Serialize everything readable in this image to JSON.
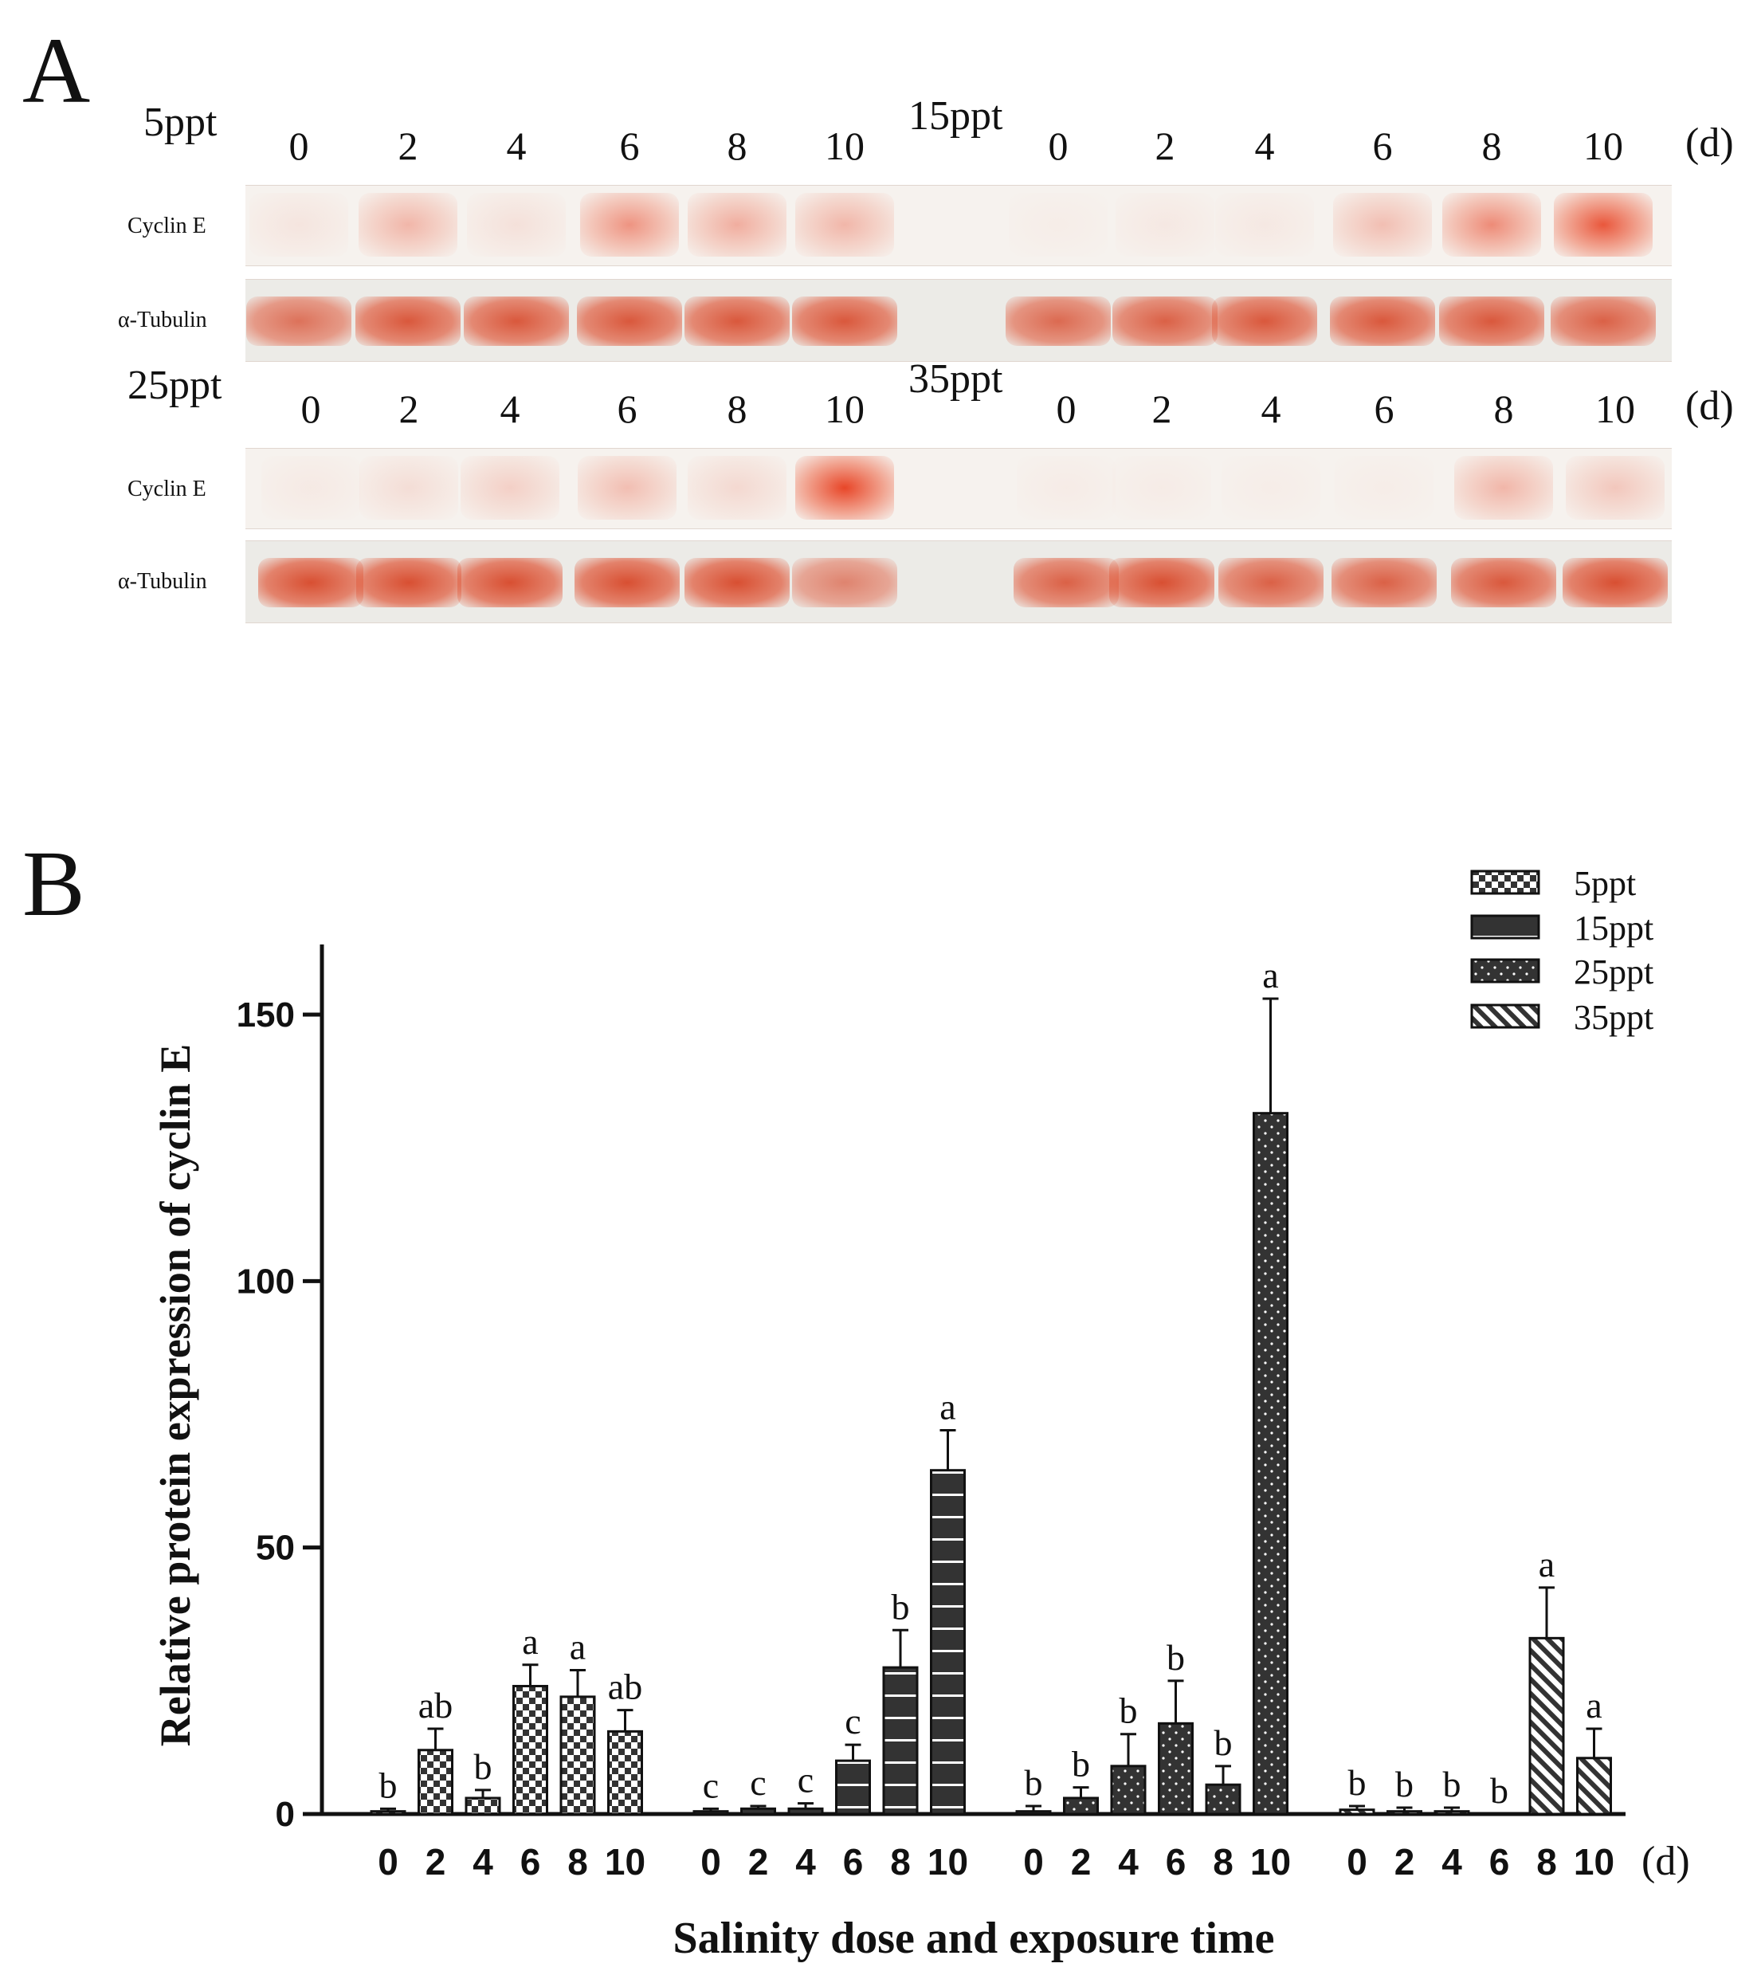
{
  "panel_a": {
    "letter": "A",
    "unit": "(d)",
    "row_labels": {
      "cyclin": "Cyclin E",
      "tubulin": "α-Tubulin"
    },
    "groups": [
      {
        "name": "5ppt",
        "lanes": [
          "0",
          "2",
          "4",
          "6",
          "8",
          "10"
        ],
        "cyclin_intensity": [
          0.08,
          0.35,
          0.1,
          0.55,
          0.4,
          0.35
        ],
        "tubulin_intensity": [
          0.7,
          0.85,
          0.85,
          0.85,
          0.85,
          0.85
        ]
      },
      {
        "name": "15ppt",
        "lanes": [
          "0",
          "2",
          "4",
          "6",
          "8",
          "10"
        ],
        "cyclin_intensity": [
          0.03,
          0.06,
          0.06,
          0.3,
          0.6,
          0.9
        ],
        "tubulin_intensity": [
          0.75,
          0.8,
          0.85,
          0.85,
          0.85,
          0.8
        ]
      },
      {
        "name": "25ppt",
        "lanes": [
          "0",
          "2",
          "4",
          "6",
          "8",
          "10"
        ],
        "cyclin_intensity": [
          0.05,
          0.12,
          0.2,
          0.3,
          0.15,
          1.0
        ],
        "tubulin_intensity": [
          0.9,
          0.9,
          0.9,
          0.9,
          0.9,
          0.6
        ]
      },
      {
        "name": "35ppt",
        "lanes": [
          "0",
          "2",
          "4",
          "6",
          "8",
          "10"
        ],
        "cyclin_intensity": [
          0.04,
          0.04,
          0.03,
          0.03,
          0.35,
          0.25
        ],
        "tubulin_intensity": [
          0.8,
          0.9,
          0.8,
          0.8,
          0.85,
          0.9
        ]
      }
    ]
  },
  "panel_b": {
    "letter": "B"
  },
  "chart_data": {
    "type": "bar",
    "ylabel": "Relative protein expression of cyclin E",
    "xlabel": "Salinity dose and exposure time",
    "x_unit": "(d)",
    "ylim": [
      0,
      160
    ],
    "yticks": [
      "0",
      "50",
      "100",
      "150"
    ],
    "categories": [
      "0",
      "2",
      "4",
      "6",
      "8",
      "10"
    ],
    "series": [
      {
        "name": "5ppt",
        "pattern": "checker",
        "values": [
          0.5,
          12,
          3,
          24,
          22,
          15.5
        ],
        "errors": [
          0.5,
          4,
          1.5,
          4,
          5,
          4
        ],
        "letters": [
          "b",
          "ab",
          "b",
          "a",
          "a",
          "ab"
        ]
      },
      {
        "name": "15ppt",
        "pattern": "hlines",
        "values": [
          0.5,
          1,
          1,
          10,
          27.5,
          64.5
        ],
        "errors": [
          0.5,
          0.5,
          1,
          3,
          7,
          7.5
        ],
        "letters": [
          "c",
          "c",
          "c",
          "c",
          "b",
          "a"
        ]
      },
      {
        "name": "25ppt",
        "pattern": "dots",
        "values": [
          0.5,
          3,
          9,
          17,
          5.5,
          131.5
        ],
        "errors": [
          1,
          2,
          6,
          8,
          3.5,
          21.5
        ],
        "letters": [
          "b",
          "b",
          "b",
          "b",
          "b",
          "a"
        ]
      },
      {
        "name": "35ppt",
        "pattern": "diag",
        "values": [
          0.8,
          0.5,
          0.5,
          0,
          33,
          10.5
        ],
        "errors": [
          0.7,
          0.7,
          0.7,
          0,
          9.5,
          5.5
        ],
        "letters": [
          "b",
          "b",
          "b",
          "b",
          "a",
          "a"
        ]
      }
    ]
  }
}
